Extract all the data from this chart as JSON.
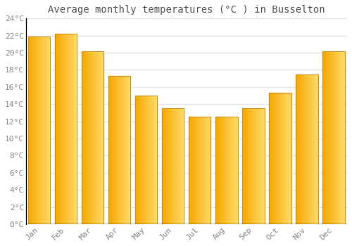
{
  "title": "Average monthly temperatures (°C ) in Busselton",
  "months": [
    "Jan",
    "Feb",
    "Mar",
    "Apr",
    "May",
    "Jun",
    "Jul",
    "Aug",
    "Sep",
    "Oct",
    "Nov",
    "Dec"
  ],
  "values": [
    21.9,
    22.2,
    20.2,
    17.3,
    15.0,
    13.5,
    12.5,
    12.5,
    13.5,
    15.3,
    17.5,
    20.2
  ],
  "ylim": [
    0,
    24
  ],
  "yticks": [
    0,
    2,
    4,
    6,
    8,
    10,
    12,
    14,
    16,
    18,
    20,
    22,
    24
  ],
  "ytick_labels": [
    "0°C",
    "2°C",
    "4°C",
    "6°C",
    "8°C",
    "10°C",
    "12°C",
    "14°C",
    "16°C",
    "18°C",
    "20°C",
    "22°C",
    "24°C"
  ],
  "title_fontsize": 10,
  "tick_fontsize": 8,
  "grid_color": "#e0e0e0",
  "bg_color": "#ffffff",
  "bar_color_left": "#F5A800",
  "bar_color_right": "#FFD966",
  "bar_edge_color": "#C8922A",
  "bar_width": 0.82
}
